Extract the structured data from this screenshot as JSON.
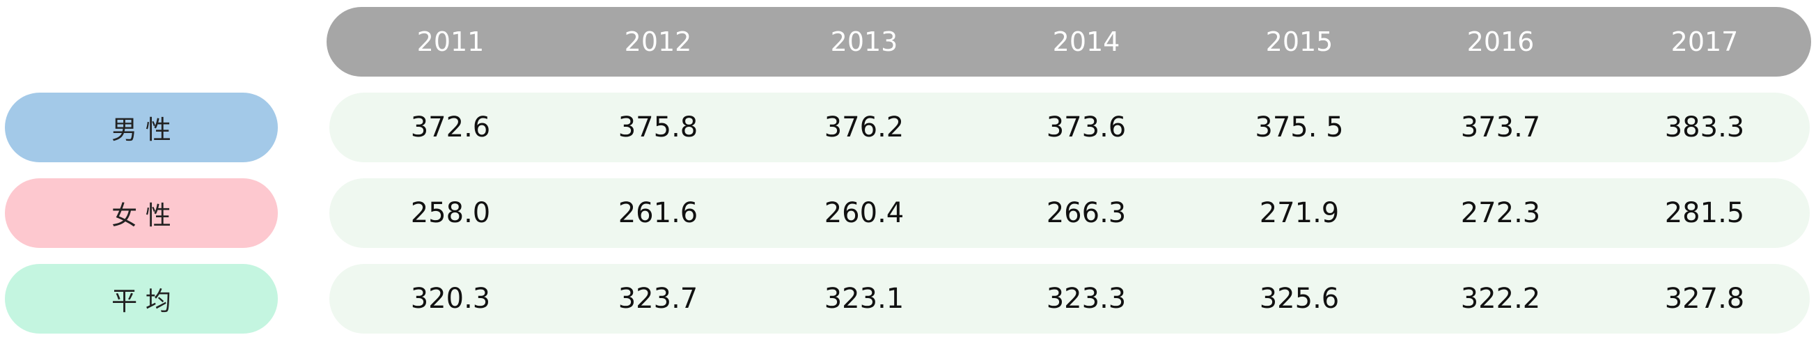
{
  "table": {
    "columns": [
      "2011",
      "2012",
      "2013",
      "2014",
      "2015",
      "2016",
      "2017"
    ],
    "rows": [
      {
        "label": "男 性",
        "values": [
          "372.6",
          "375.8",
          "376.2",
          "373.6",
          "375. 5",
          "373.7",
          "383.3"
        ]
      },
      {
        "label": "女 性",
        "values": [
          "258.0",
          "261.6",
          "260.4",
          "266.3",
          "271.9",
          "272.3",
          "281.5"
        ]
      },
      {
        "label": "平 均",
        "values": [
          "320.3",
          "323.7",
          "323.1",
          "323.3",
          "325.6",
          "322.2",
          "327.8"
        ]
      }
    ]
  }
}
